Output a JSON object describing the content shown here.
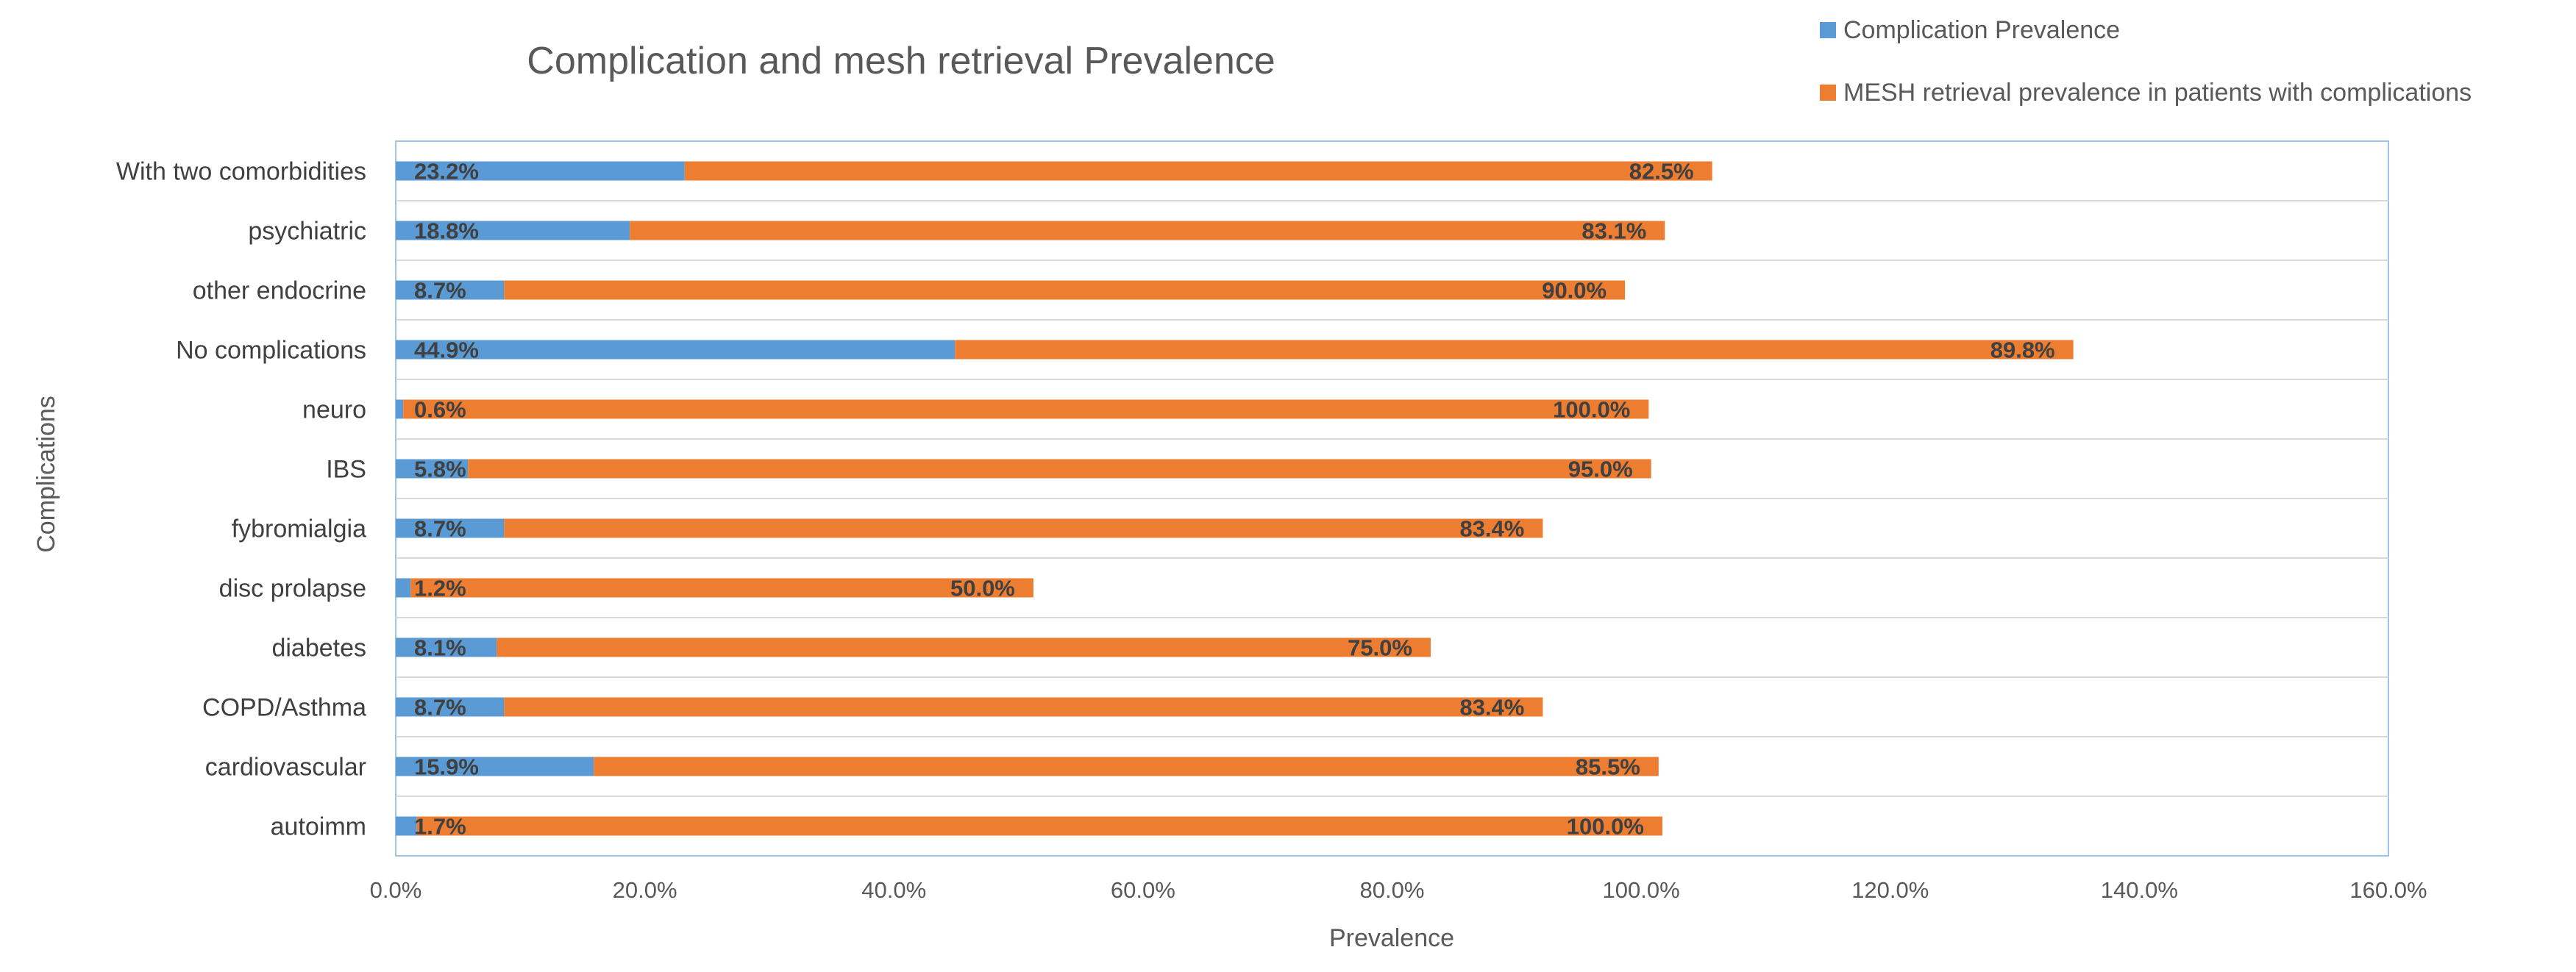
{
  "chart_data": {
    "type": "bar",
    "orientation": "horizontal",
    "stacked": true,
    "title": "Complication and mesh retrieval Prevalence",
    "xlabel": "Prevalence",
    "ylabel": "Complications",
    "xlim": [
      0,
      160
    ],
    "x_ticks": [
      "0.0%",
      "20.0%",
      "40.0%",
      "60.0%",
      "80.0%",
      "100.0%",
      "120.0%",
      "140.0%",
      "160.0%"
    ],
    "x_tick_values": [
      0,
      20,
      40,
      60,
      80,
      100,
      120,
      140,
      160
    ],
    "grid": "horizontal category separators",
    "legend_position": "top-right",
    "categories": [
      "autoimm",
      "cardiovascular",
      "COPD/Asthma",
      "diabetes",
      "disc prolapse",
      "fybromialgia",
      "IBS",
      "neuro",
      "No complications",
      "other endocrine",
      "psychiatric",
      "With two comorbidities"
    ],
    "series": [
      {
        "name": "Complication Prevalence",
        "color": "#5B9BD5",
        "values": [
          1.7,
          15.9,
          8.7,
          8.1,
          1.2,
          8.7,
          5.8,
          0.6,
          44.9,
          8.7,
          18.8,
          23.2
        ],
        "labels": [
          "1.7%",
          "15.9%",
          "8.7%",
          "8.1%",
          "1.2%",
          "8.7%",
          "5.8%",
          "0.6%",
          "44.9%",
          "8.7%",
          "18.8%",
          "23.2%"
        ]
      },
      {
        "name": "MESH retrieval prevalence in patients with complications",
        "color": "#ED7D31",
        "values": [
          100.0,
          85.5,
          83.4,
          75.0,
          50.0,
          83.4,
          95.0,
          100.0,
          89.8,
          90.0,
          83.1,
          82.5
        ],
        "labels": [
          "100.0%",
          "85.5%",
          "83.4%",
          "75.0%",
          "50.0%",
          "83.4%",
          "95.0%",
          "100.0%",
          "89.8%",
          "90.0%",
          "83.1%",
          "82.5%"
        ]
      }
    ]
  }
}
